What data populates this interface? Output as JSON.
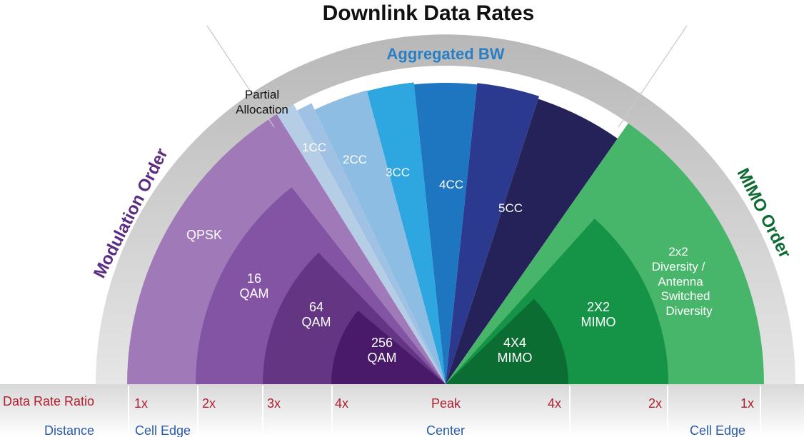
{
  "title": "Downlink Data Rates",
  "section_labels": {
    "modulation": "Modulation Order",
    "aggregated": "Aggregated BW",
    "mimo": "MIMO Order",
    "partial_line1": "Partial",
    "partial_line2": "Allocation"
  },
  "modulation_bands": [
    {
      "lines": [
        "QPSK"
      ]
    },
    {
      "lines": [
        "16",
        "QAM"
      ]
    },
    {
      "lines": [
        "64",
        "QAM"
      ]
    },
    {
      "lines": [
        "256",
        "QAM"
      ]
    }
  ],
  "carrier_wedges": [
    {
      "label": "1CC"
    },
    {
      "label": "2CC"
    },
    {
      "label": "3CC"
    },
    {
      "label": "4CC"
    },
    {
      "label": "5CC"
    }
  ],
  "mimo_bands": [
    {
      "lines": [
        "2x2",
        "Diversity /",
        "Antenna",
        "Switched",
        "Diversity"
      ]
    },
    {
      "lines": [
        "2X2",
        "MIMO"
      ]
    },
    {
      "lines": [
        "4X4",
        "MIMO"
      ]
    }
  ],
  "row_labels": {
    "ratio": "Data Rate Ratio",
    "distance": "Distance"
  },
  "ratio_ticks": [
    "1x",
    "2x",
    "3x",
    "4x",
    "Peak",
    "4x",
    "2x",
    "1x"
  ],
  "distance_ticks": [
    "Cell Edge",
    "Center",
    "Cell Edge"
  ],
  "colors": {
    "title": "#111111",
    "modulation_text": "#5a2d82",
    "aggregated_text": "#2a7fc4",
    "mimo_text": "#0e6b33",
    "ratio_text": "#b02030",
    "distance_text": "#2a5aa8",
    "qpsk": "#a07ab8",
    "qam16": "#8454a4",
    "qam64": "#633582",
    "qam256": "#4a1a6a",
    "cc1": "#8ebde3",
    "cc2": "#2ea6e0",
    "cc3": "#1e76c0",
    "cc4": "#2b3a8e",
    "cc5": "#242258",
    "mimo_div": "#47b66a",
    "mimo_2x2": "#159447",
    "mimo_4x4": "#0b6d32",
    "rim": "#cfcfcf"
  }
}
